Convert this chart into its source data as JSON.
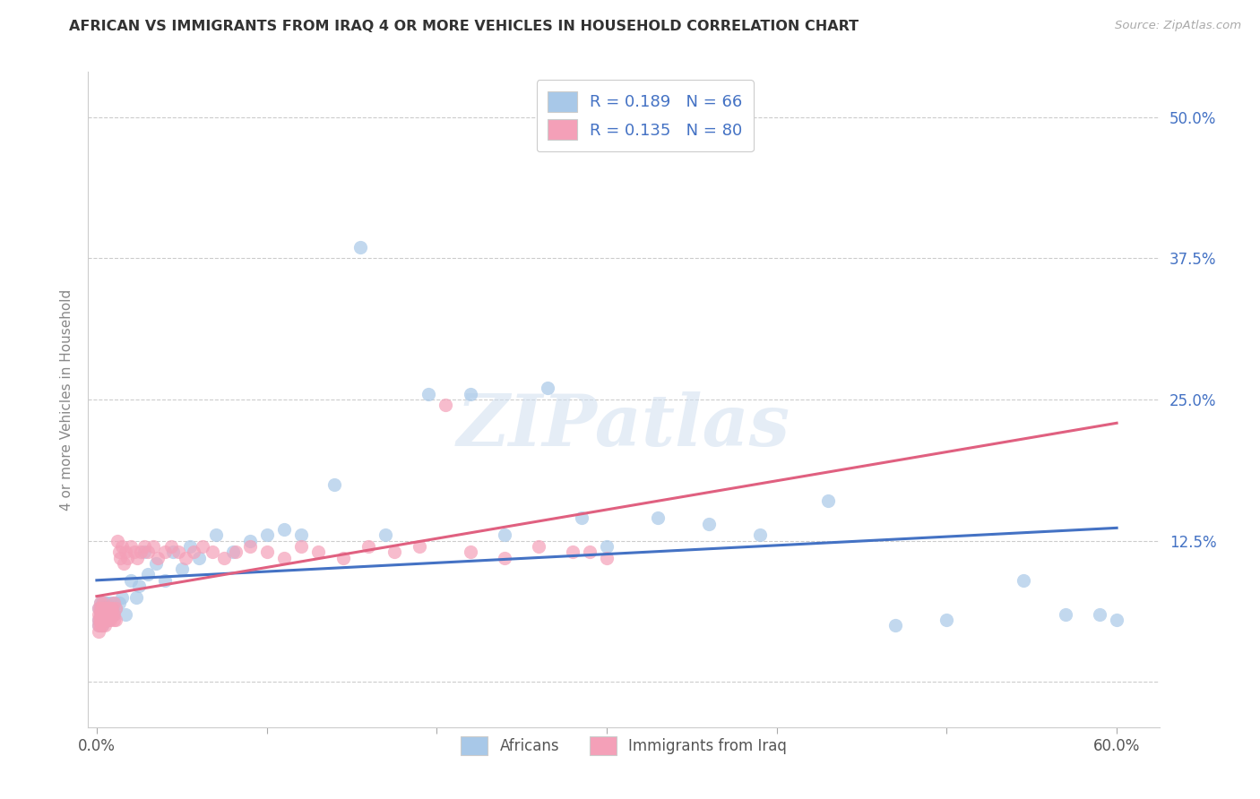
{
  "title": "AFRICAN VS IMMIGRANTS FROM IRAQ 4 OR MORE VEHICLES IN HOUSEHOLD CORRELATION CHART",
  "source": "Source: ZipAtlas.com",
  "xlabel_ticks_shown": [
    "0.0%",
    "",
    "",
    "",
    "",
    "",
    "60.0%"
  ],
  "xlabel_vals": [
    0.0,
    0.1,
    0.2,
    0.3,
    0.4,
    0.5,
    0.6
  ],
  "ylabel_ticks": [
    "50.0%",
    "37.5%",
    "25.0%",
    "12.5%"
  ],
  "ylabel_vals": [
    0.5,
    0.375,
    0.25,
    0.125
  ],
  "xlim": [
    -0.005,
    0.625
  ],
  "ylim": [
    -0.04,
    0.54
  ],
  "ylabel": "4 or more Vehicles in Household",
  "africans_color": "#a8c8e8",
  "iraq_color": "#f4a0b8",
  "africans_line_color": "#4472c4",
  "iraq_line_color": "#e06080",
  "watermark": "ZIPatlas",
  "africans_R": 0.189,
  "africans_N": 66,
  "iraq_R": 0.135,
  "iraq_N": 80,
  "grid_color": "#cccccc",
  "africans_x": [
    0.001,
    0.001,
    0.001,
    0.002,
    0.002,
    0.002,
    0.002,
    0.003,
    0.003,
    0.003,
    0.003,
    0.004,
    0.004,
    0.004,
    0.005,
    0.005,
    0.005,
    0.006,
    0.006,
    0.007,
    0.007,
    0.008,
    0.008,
    0.009,
    0.01,
    0.01,
    0.011,
    0.013,
    0.015,
    0.017,
    0.02,
    0.023,
    0.025,
    0.028,
    0.03,
    0.035,
    0.04,
    0.045,
    0.05,
    0.055,
    0.06,
    0.07,
    0.08,
    0.09,
    0.1,
    0.11,
    0.12,
    0.14,
    0.155,
    0.17,
    0.195,
    0.22,
    0.24,
    0.265,
    0.285,
    0.3,
    0.33,
    0.36,
    0.39,
    0.43,
    0.47,
    0.5,
    0.545,
    0.57,
    0.59,
    0.6
  ],
  "africans_y": [
    0.065,
    0.055,
    0.05,
    0.07,
    0.06,
    0.065,
    0.055,
    0.06,
    0.07,
    0.065,
    0.05,
    0.065,
    0.055,
    0.06,
    0.07,
    0.06,
    0.065,
    0.07,
    0.06,
    0.065,
    0.055,
    0.06,
    0.07,
    0.065,
    0.06,
    0.07,
    0.065,
    0.07,
    0.075,
    0.06,
    0.09,
    0.075,
    0.085,
    0.115,
    0.095,
    0.105,
    0.09,
    0.115,
    0.1,
    0.12,
    0.11,
    0.13,
    0.115,
    0.125,
    0.13,
    0.135,
    0.13,
    0.175,
    0.385,
    0.13,
    0.255,
    0.255,
    0.13,
    0.26,
    0.145,
    0.12,
    0.145,
    0.14,
    0.13,
    0.16,
    0.05,
    0.055,
    0.09,
    0.06,
    0.06,
    0.055
  ],
  "iraq_x": [
    0.001,
    0.001,
    0.001,
    0.001,
    0.001,
    0.002,
    0.002,
    0.002,
    0.002,
    0.002,
    0.002,
    0.003,
    0.003,
    0.003,
    0.003,
    0.003,
    0.004,
    0.004,
    0.004,
    0.004,
    0.005,
    0.005,
    0.005,
    0.005,
    0.006,
    0.006,
    0.006,
    0.007,
    0.007,
    0.007,
    0.008,
    0.008,
    0.008,
    0.009,
    0.009,
    0.01,
    0.01,
    0.01,
    0.011,
    0.011,
    0.012,
    0.013,
    0.014,
    0.015,
    0.016,
    0.017,
    0.018,
    0.02,
    0.022,
    0.024,
    0.026,
    0.028,
    0.03,
    0.033,
    0.036,
    0.04,
    0.044,
    0.048,
    0.052,
    0.057,
    0.062,
    0.068,
    0.075,
    0.082,
    0.09,
    0.1,
    0.11,
    0.12,
    0.13,
    0.145,
    0.16,
    0.175,
    0.19,
    0.205,
    0.22,
    0.24,
    0.26,
    0.28,
    0.3,
    0.29
  ],
  "iraq_y": [
    0.06,
    0.05,
    0.055,
    0.045,
    0.065,
    0.055,
    0.06,
    0.05,
    0.065,
    0.055,
    0.07,
    0.06,
    0.05,
    0.055,
    0.065,
    0.06,
    0.055,
    0.065,
    0.06,
    0.07,
    0.055,
    0.06,
    0.065,
    0.05,
    0.06,
    0.065,
    0.055,
    0.06,
    0.065,
    0.055,
    0.06,
    0.055,
    0.065,
    0.06,
    0.065,
    0.055,
    0.06,
    0.07,
    0.055,
    0.065,
    0.125,
    0.115,
    0.11,
    0.12,
    0.105,
    0.115,
    0.11,
    0.12,
    0.115,
    0.11,
    0.115,
    0.12,
    0.115,
    0.12,
    0.11,
    0.115,
    0.12,
    0.115,
    0.11,
    0.115,
    0.12,
    0.115,
    0.11,
    0.115,
    0.12,
    0.115,
    0.11,
    0.12,
    0.115,
    0.11,
    0.12,
    0.115,
    0.12,
    0.245,
    0.115,
    0.11,
    0.12,
    0.115,
    0.11,
    0.115
  ]
}
